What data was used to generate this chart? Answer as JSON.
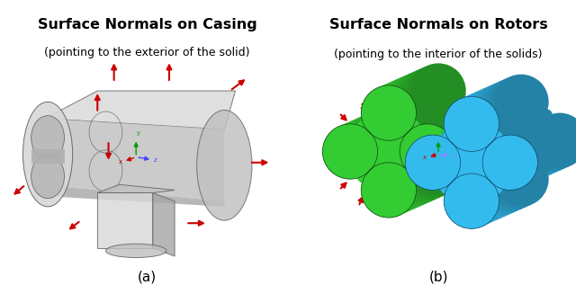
{
  "title_a": "Surface Normals on Casing",
  "subtitle_a": "(pointing to the exterior of the solid)",
  "title_b": "Surface Normals on Rotors",
  "subtitle_b": "(pointing to the interior of the solids)",
  "label_a": "(a)",
  "label_b": "(b)",
  "title_fontsize": 11.5,
  "subtitle_fontsize": 9,
  "label_fontsize": 11,
  "bg_color": "#ffffff",
  "casing_light": "#d8d8d8",
  "casing_mid": "#c0c0c0",
  "casing_dark": "#a8a8a8",
  "casing_edge": "#606060",
  "casing_alpha": 0.82,
  "inner_color": "#e0e0e0",
  "rotor_green_light": "#33cc33",
  "rotor_green_dark": "#229922",
  "rotor_blue_light": "#33bbee",
  "rotor_blue_dark": "#1188cc",
  "arrow_color": "#cc0000",
  "axis_x_color": "#cc0000",
  "axis_y_color": "#009900",
  "axis_z_color": "#4444ff"
}
